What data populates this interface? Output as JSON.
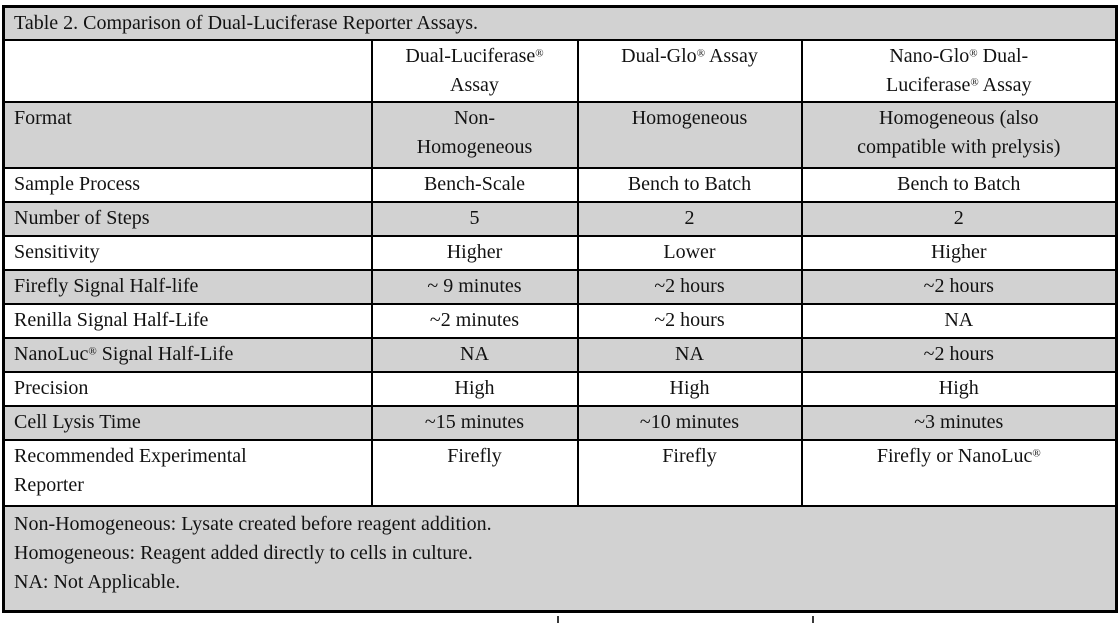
{
  "table": {
    "title": "Table 2. Comparison of Dual-Luciferase Reporter Assays.",
    "corner_label": "",
    "columns": [
      "Dual-Luciferase®\nAssay",
      "Dual-Glo® Assay",
      "Nano-Glo® Dual-\nLuciferase® Assay"
    ],
    "rows": [
      {
        "label": "Format",
        "values": [
          "Non-\nHomogeneous",
          "Homogeneous",
          "Homogeneous (also\ncompatible with prelysis)"
        ],
        "shaded": true,
        "tall": true
      },
      {
        "label": "Sample Process",
        "values": [
          "Bench-Scale",
          "Bench to Batch",
          "Bench to Batch"
        ],
        "shaded": false,
        "tall": false
      },
      {
        "label": "Number of Steps",
        "values": [
          "5",
          "2",
          "2"
        ],
        "shaded": true,
        "tall": false
      },
      {
        "label": "Sensitivity",
        "values": [
          "Higher",
          "Lower",
          "Higher"
        ],
        "shaded": false,
        "tall": false
      },
      {
        "label": "Firefly Signal Half-life",
        "values": [
          "~ 9 minutes",
          "~2 hours",
          "~2 hours"
        ],
        "shaded": true,
        "tall": false
      },
      {
        "label": "Renilla Signal Half-Life",
        "values": [
          "~2 minutes",
          "~2 hours",
          "NA"
        ],
        "shaded": false,
        "tall": false
      },
      {
        "label": "NanoLuc® Signal Half-Life",
        "values": [
          "NA",
          "NA",
          "~2 hours"
        ],
        "shaded": true,
        "tall": false
      },
      {
        "label": "Precision",
        "values": [
          "High",
          "High",
          "High"
        ],
        "shaded": false,
        "tall": false
      },
      {
        "label": "Cell Lysis Time",
        "values": [
          "~15 minutes",
          "~10 minutes",
          "~3 minutes"
        ],
        "shaded": true,
        "tall": false
      },
      {
        "label": "Recommended Experimental\nReporter",
        "values": [
          "Firefly",
          "Firefly",
          "Firefly or NanoLuc®"
        ],
        "shaded": false,
        "tall": true
      }
    ],
    "footnotes": [
      "Non-Homogeneous: Lysate created before reagent addition.",
      "Homogeneous: Reagent added directly to cells in culture.",
      "NA: Not Applicable."
    ],
    "colors": {
      "shaded_bg": "#d2d2d2",
      "border": "#000000",
      "text": "#121212"
    }
  }
}
